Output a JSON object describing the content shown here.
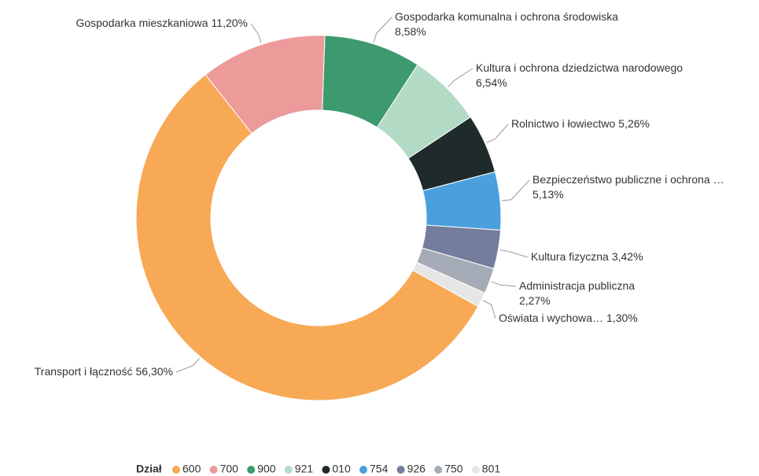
{
  "chart_data": {
    "type": "donut",
    "legend_title": "Dział",
    "series": [
      {
        "name": "600",
        "label": "Transport i łączność",
        "color": "#f7a955",
        "value": 56.3,
        "value_label": "56,30%"
      },
      {
        "name": "700",
        "label": "Gospodarka mieszkaniowa",
        "color": "#ed9a9b",
        "value": 11.2,
        "value_label": "11,20%"
      },
      {
        "name": "900",
        "label": "Gospodarka komunalna i ochrona środowiska",
        "color": "#3c9a6e",
        "value": 8.58,
        "value_label": "8,58%"
      },
      {
        "name": "921",
        "label": "Kultura i ochrona dziedzictwa narodowego",
        "color": "#b2dac5",
        "value": 6.54,
        "value_label": "6,54%"
      },
      {
        "name": "010",
        "label": "Rolnictwo i łowiectwo",
        "color": "#1f2a2a",
        "value": 5.26,
        "value_label": "5,26%"
      },
      {
        "name": "754",
        "label": "Bezpieczeństwo publiczne i ochrona …",
        "color": "#4aa0dc",
        "value": 5.13,
        "value_label": "5,13%"
      },
      {
        "name": "926",
        "label": "Kultura fizyczna",
        "color": "#747d9b",
        "value": 3.42,
        "value_label": "3,42%"
      },
      {
        "name": "750",
        "label": "Administracja publiczna",
        "color": "#a5acb8",
        "value": 2.27,
        "value_label": "2,27%"
      },
      {
        "name": "801",
        "label": "Oświata i wychowa…",
        "color": "#e6e6e6",
        "value": 1.3,
        "value_label": "1,30%"
      }
    ]
  }
}
